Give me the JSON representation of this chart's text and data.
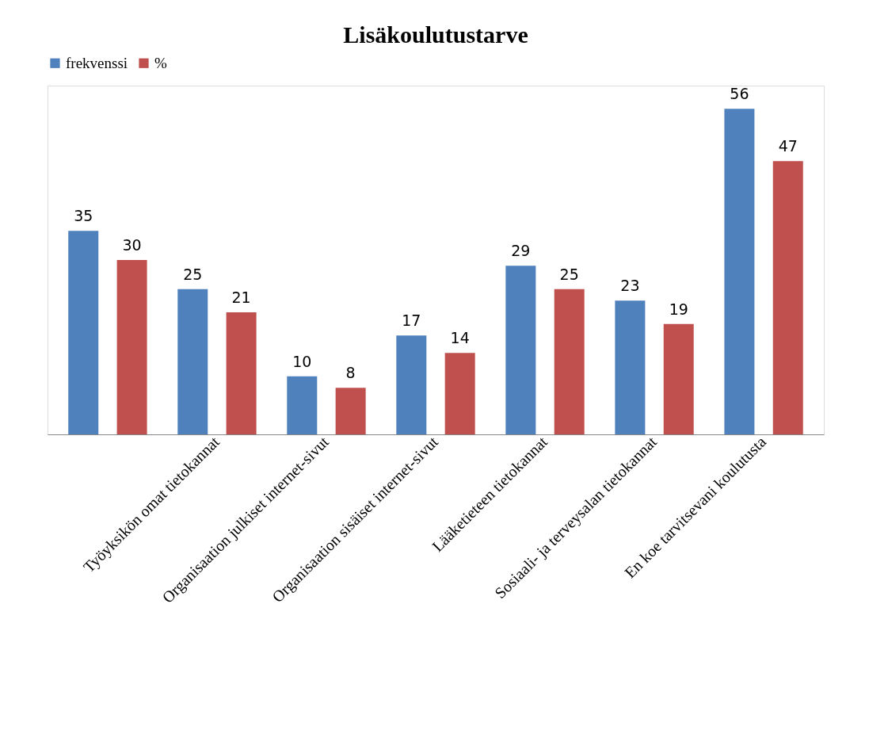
{
  "chart_data": {
    "type": "bar",
    "title": "Lisäkoulutustarve",
    "categories": [
      null,
      "Työyksikön omat tietokannat",
      "Organisaation julkiset internet-sivut",
      "Organisaation sisäiset internet-sivut",
      "Lääketieteen tietokannat",
      "Sosiaali- ja terveysalan tietokannat",
      "En koe tarvitsevani koulutusta"
    ],
    "series": [
      {
        "name": "frekvenssi",
        "color": "#4f81bd",
        "values": [
          35,
          25,
          10,
          17,
          29,
          23,
          56
        ]
      },
      {
        "name": "%",
        "color": "#c0504d",
        "values": [
          30,
          21,
          8,
          14,
          25,
          19,
          47
        ]
      }
    ],
    "data_labels": true,
    "legend": "top"
  }
}
